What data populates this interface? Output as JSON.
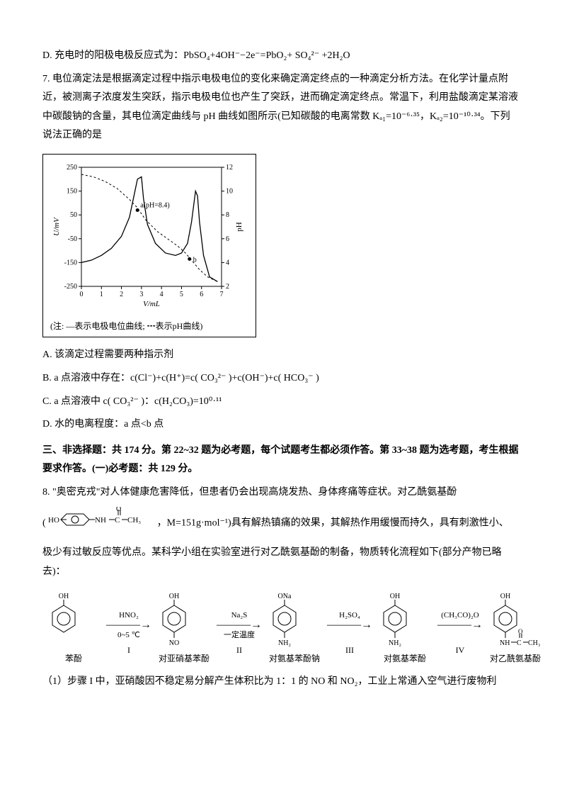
{
  "optionD_q6": "D. 充电时的阳极电极反应式为：PbSO₄+4OH⁻−2e⁻=PbO₂+ SO₄²⁻ +2H₂O",
  "q7_stem_1": "7. 电位滴定法是根据滴定过程中指示电极电位的变化来确定滴定终点的一种滴定分析方法。在化学计量点附近，被测离子浓度发生突跃，指示电极电位也产生了突跃，进而确定滴定终点。常温下，利用盐酸滴定某溶液中碳酸钠的含量，其电位滴定曲线与 pH 曲线如图所示(已知碳酸的电离常数 Kₐ₁=10⁻⁶·³⁵，Kₐ₂=10⁻¹⁰·³⁴。下列说法正确的是",
  "chart": {
    "type": "line",
    "x_label": "V/mL",
    "y_left_label": "U/mV",
    "y_right_label": "pH",
    "xlim": [
      0,
      7
    ],
    "ylim_left": [
      -250,
      250
    ],
    "ylim_right": [
      2,
      12
    ],
    "xtick": [
      0,
      1,
      2,
      3,
      4,
      5,
      6,
      7
    ],
    "ytick_left": [
      -250,
      -150,
      -50,
      50,
      150,
      250
    ],
    "ytick_right": [
      2,
      4,
      6,
      8,
      10,
      12
    ],
    "annotation_a": "a(pH=8.4)",
    "annotation_b": "b",
    "potential_series": [
      [
        0.0,
        -150
      ],
      [
        0.5,
        -140
      ],
      [
        1.0,
        -120
      ],
      [
        1.5,
        -90
      ],
      [
        2.0,
        -40
      ],
      [
        2.4,
        40
      ],
      [
        2.6,
        120
      ],
      [
        2.8,
        200
      ],
      [
        3.0,
        210
      ],
      [
        3.1,
        120
      ],
      [
        3.3,
        10
      ],
      [
        3.7,
        -70
      ],
      [
        4.2,
        -110
      ],
      [
        4.7,
        -120
      ],
      [
        5.0,
        -110
      ],
      [
        5.3,
        -70
      ],
      [
        5.5,
        20
      ],
      [
        5.7,
        150
      ],
      [
        5.8,
        130
      ],
      [
        5.9,
        20
      ],
      [
        6.1,
        -120
      ],
      [
        6.4,
        -210
      ],
      [
        6.8,
        -230
      ]
    ],
    "ph_series": [
      [
        0.0,
        11.4
      ],
      [
        0.6,
        11.2
      ],
      [
        1.2,
        10.8
      ],
      [
        1.8,
        10.2
      ],
      [
        2.4,
        9.3
      ],
      [
        2.8,
        8.6
      ],
      [
        3.2,
        7.6
      ],
      [
        3.8,
        6.6
      ],
      [
        4.3,
        6.0
      ],
      [
        4.8,
        5.4
      ],
      [
        5.2,
        4.8
      ],
      [
        5.5,
        4.2
      ],
      [
        5.9,
        3.4
      ],
      [
        6.3,
        2.8
      ],
      [
        6.8,
        2.4
      ]
    ],
    "line_colors": {
      "potential": "#000000",
      "ph": "#000000"
    },
    "ph_dash": "3,3",
    "caption": "(注: —表示电极电位曲线;  ┅表示pH曲线)",
    "background_color": "#ffffff"
  },
  "q7_optA": "A. 该滴定过程需要两种指示剂",
  "q7_optB": "B. a 点溶液中存在：c(Cl⁻)+c(H⁺)=c( CO₃²⁻ )+c(OH⁻)+c( HCO₃⁻ )",
  "q7_optC": "C.  a 点溶液中 c( CO₃²⁻ )：c(H₂CO₃)=10⁰·¹¹",
  "q7_optD": "D. 水的电离程度：a 点<b 点",
  "section3_title": "三、非选择题：共 174 分。第 22~32 题为必考题，每个试题考生都必须作答。第 33~38 题为选考题，考生根据要求作答。(一)必考题：共 129 分。",
  "q8_stem_1": "8. \"奥密克戎\"对人体健康危害降低，但患者仍会出现高烧发热、身体疼痛等症状。对乙酰氨基酚",
  "q8_stem_2_pre": "(",
  "q8_stem_2_post": "，M=151g·mol⁻¹)具有解热镇痛的效果，其解热作用缓慢而持久，具有刺激性小、",
  "q8_stem_3": "极少有过敏反应等优点。某科学小组在实验室进行对乙酰氨基酚的制备，物质转化流程如下(部分产物已略去)：",
  "scheme": {
    "molecules": [
      {
        "top": "OH",
        "bottom": "",
        "label": "苯酚"
      },
      {
        "top": "OH",
        "bottom": "NO",
        "label": "对亚硝基苯酚"
      },
      {
        "top": "ONa",
        "bottom": "NH₂",
        "label": "对氨基苯酚钠"
      },
      {
        "top": "OH",
        "bottom": "NH₂",
        "label": "对氨基苯酚"
      },
      {
        "top": "OH",
        "bottom": "acetamide",
        "label": "对乙酰氨基酚"
      }
    ],
    "arrows": [
      {
        "top": "HNO₂",
        "bottom": "0~5 ℃",
        "step": "I"
      },
      {
        "top": "Na₂S",
        "bottom": "一定温度",
        "step": "II"
      },
      {
        "top": "H₂SO₄",
        "bottom": "",
        "step": "III"
      },
      {
        "top": "(CH₃CO)₂O",
        "bottom": "",
        "step": "IV"
      }
    ]
  },
  "q8_sub1": "（1）步骤 I 中，亚硝酸因不稳定易分解产生体积比为 1：1 的 NO 和 NO₂，工业上常通入空气进行废物利"
}
